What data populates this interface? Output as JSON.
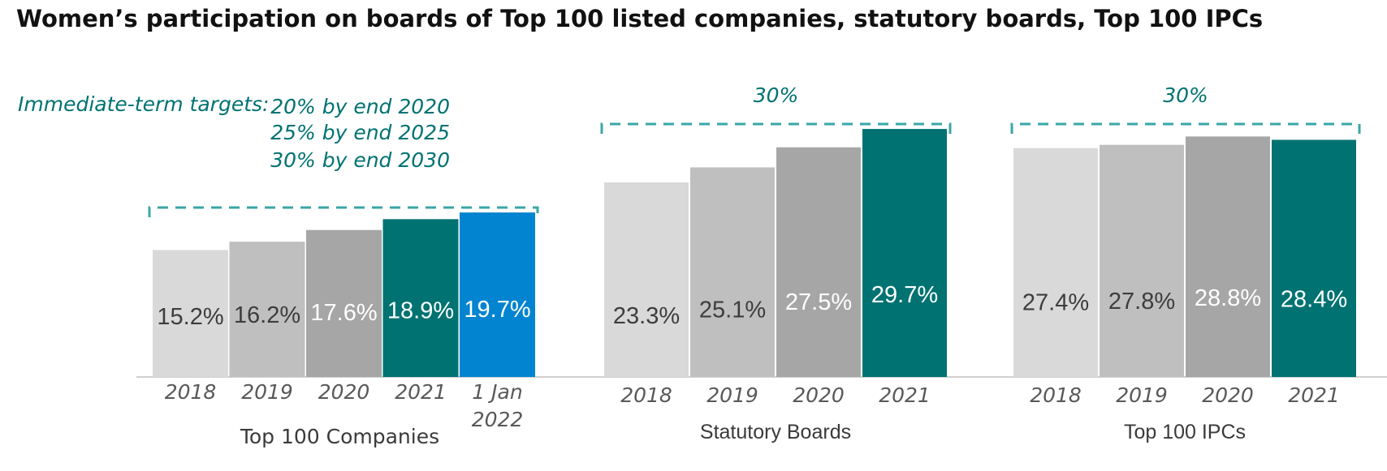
{
  "title": "Women’s participation on boards of Top 100 listed companies, statutory boards, Top 100 IPCs",
  "targets": {
    "heading": "Immediate-term targets:",
    "lines": [
      "20% by end 2020",
      "25% by end 2025",
      "30% by end 2030"
    ]
  },
  "colors": {
    "y2018": "#d9d9d9",
    "y2019": "#bfbfbf",
    "y2020": "#a6a6a6",
    "y2021": "#007272",
    "y2022": "#0284d0",
    "target_line": "#3aa6a6",
    "axis": "#d0d0d0"
  },
  "chart_data": {
    "type": "bar",
    "ylim": [
      0,
      30
    ],
    "groups": [
      {
        "name": "Top 100 Companies",
        "target": "",
        "target_value": 20,
        "categories": [
          "2018",
          "2019",
          "2020",
          "2021",
          "1 Jan 2022"
        ],
        "values": [
          15.2,
          16.2,
          17.6,
          18.9,
          19.7
        ],
        "labels": [
          "15.2%",
          "16.2%",
          "17.6%",
          "18.9%",
          "19.7%"
        ]
      },
      {
        "name": "Statutory Boards",
        "target": "30%",
        "target_value": 30,
        "categories": [
          "2018",
          "2019",
          "2020",
          "2021"
        ],
        "values": [
          23.3,
          25.1,
          27.5,
          29.7
        ],
        "labels": [
          "23.3%",
          "25.1%",
          "27.5%",
          "29.7%"
        ]
      },
      {
        "name": "Top 100 IPCs",
        "target": "30%",
        "target_value": 30,
        "categories": [
          "2018",
          "2019",
          "2020",
          "2021"
        ],
        "values": [
          27.4,
          27.8,
          28.8,
          28.4
        ],
        "labels": [
          "27.4%",
          "27.8%",
          "28.8%",
          "28.4%"
        ]
      }
    ]
  }
}
